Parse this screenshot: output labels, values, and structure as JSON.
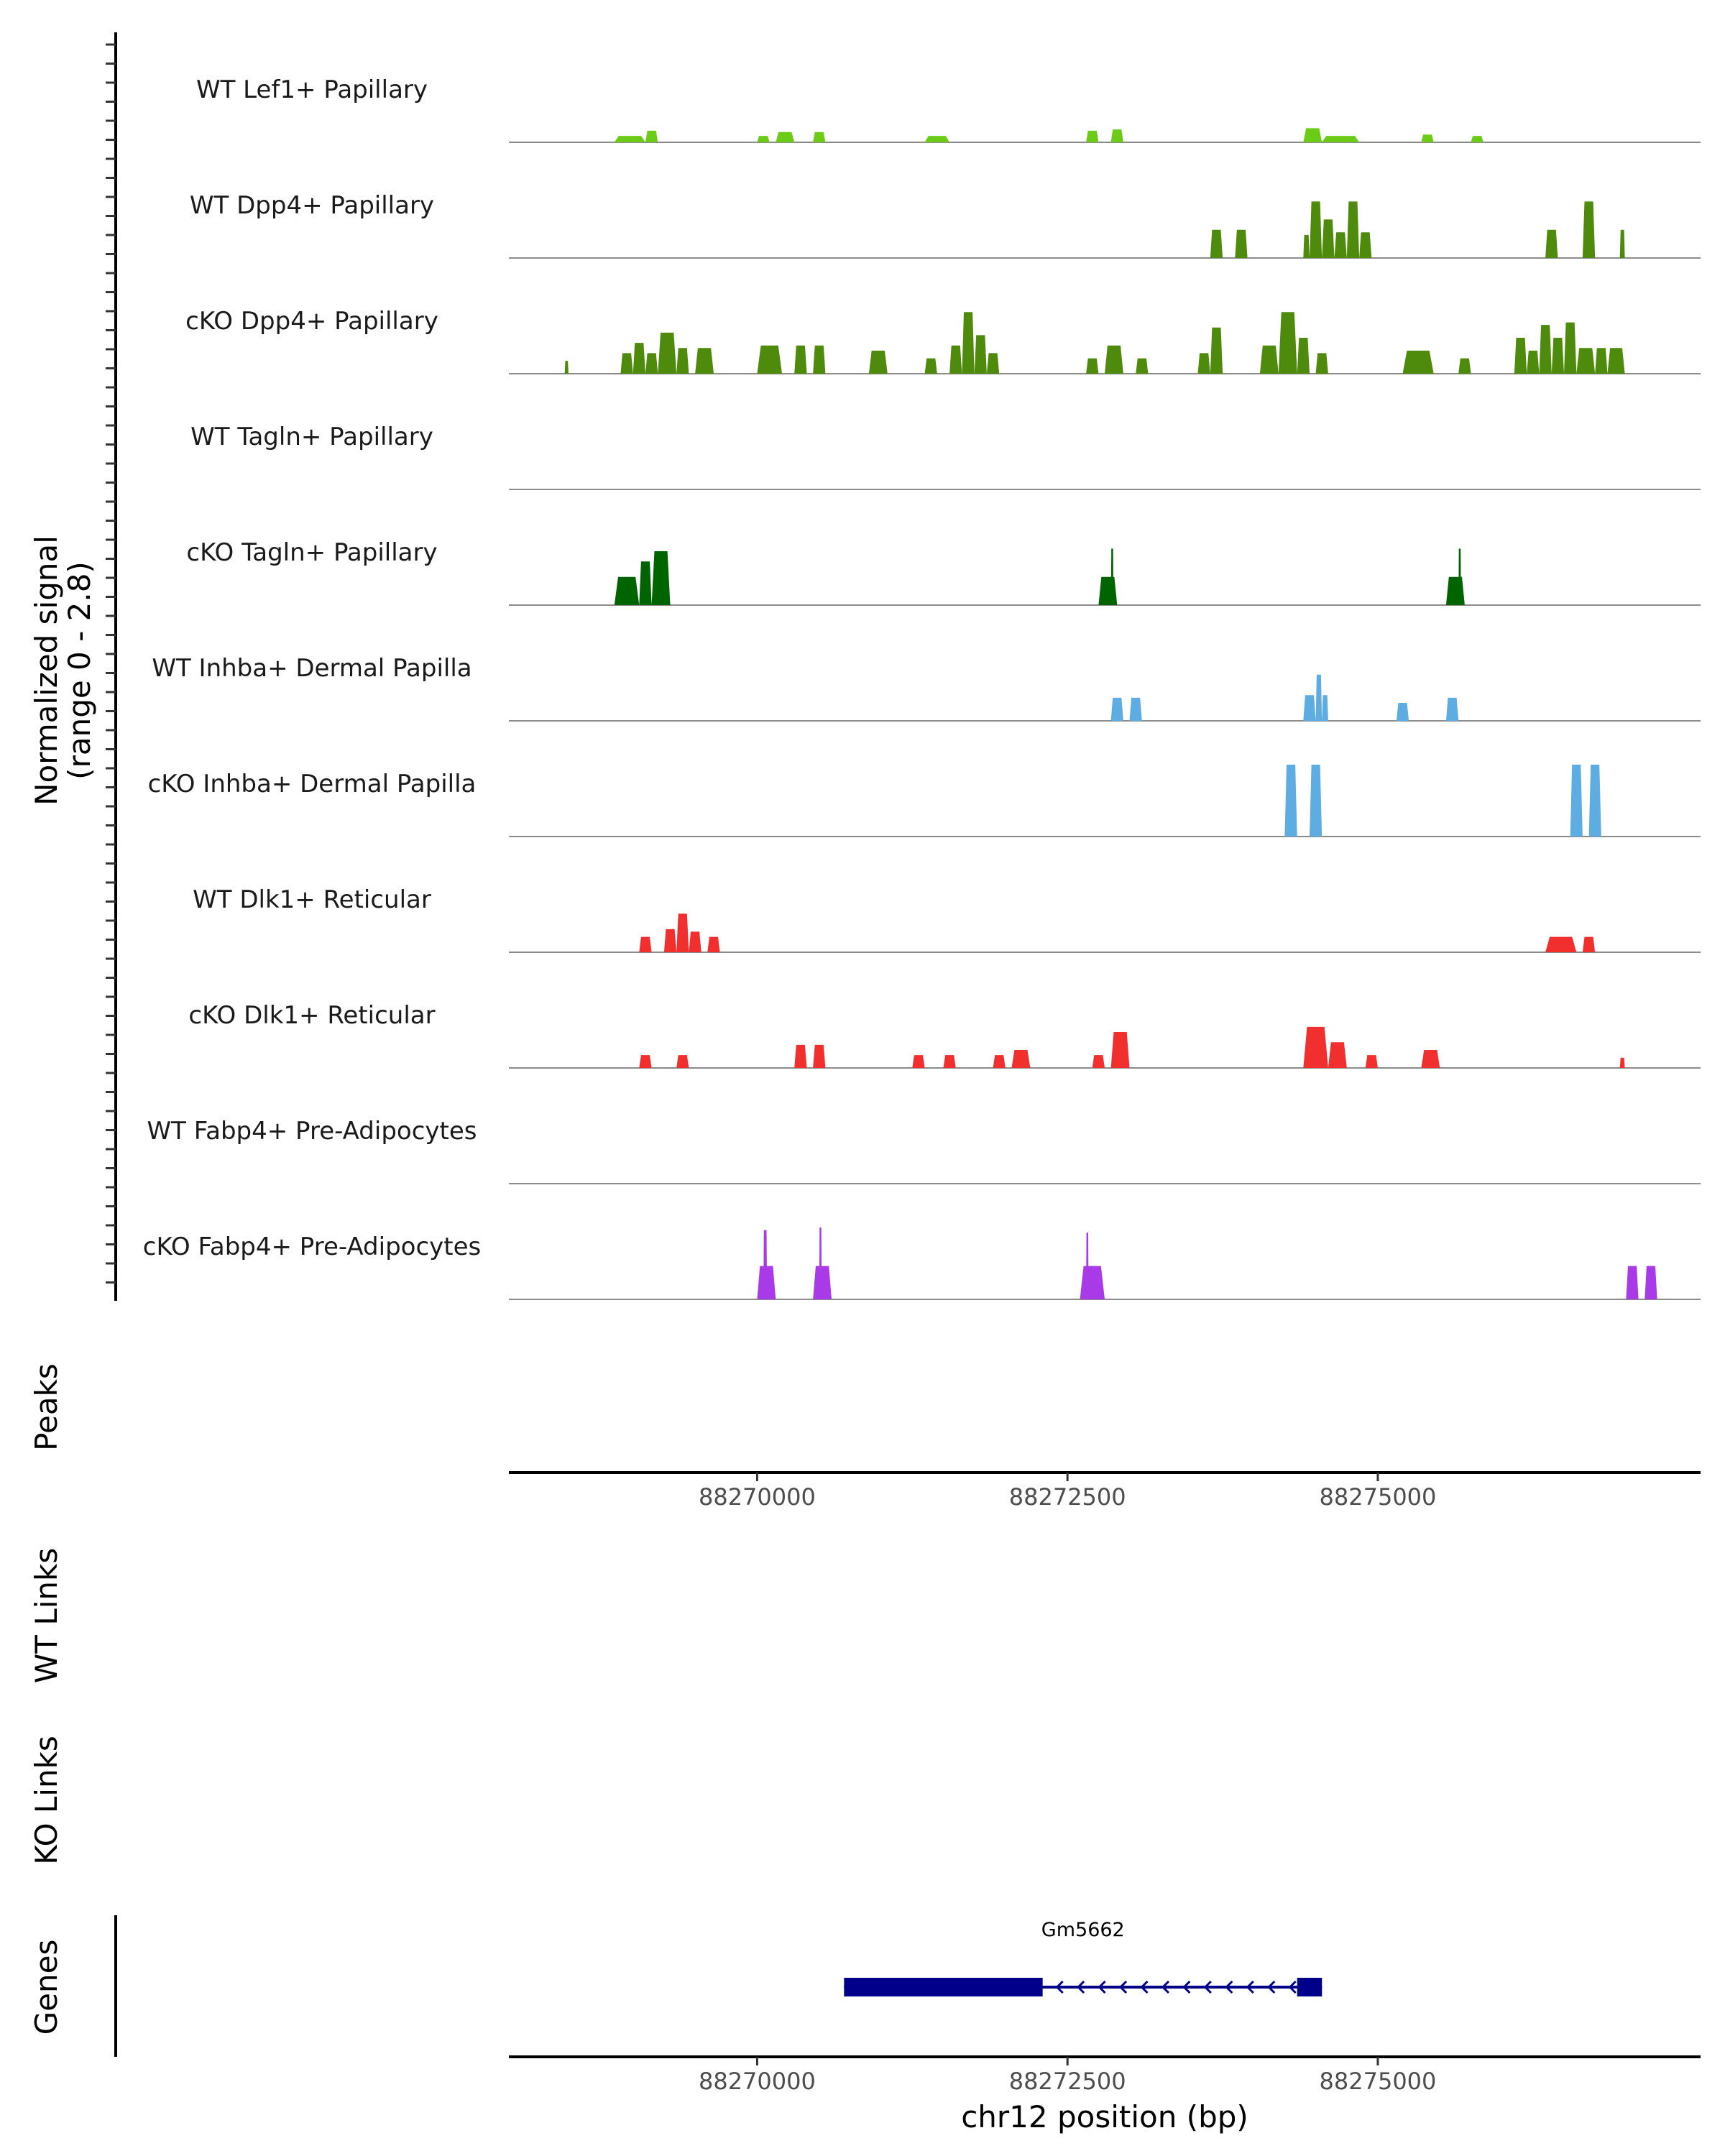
{
  "chart_data": {
    "type": "coverage",
    "chromosome": "chr12",
    "xlabel": "chr12 position (bp)",
    "xlim": [
      88268000,
      88277600
    ],
    "x_ticks": [
      88270000,
      88272500,
      88275000
    ],
    "x_tick_labels": [
      "88270000",
      "88272500",
      "88275000"
    ],
    "ylabel_line1": "Normalized signal",
    "ylabel_line2": "(range 0 - 2.8)",
    "ylim": [
      0,
      2.8
    ],
    "panels": {
      "peaks": "Peaks",
      "wt_links": "WT Links",
      "ko_links": "KO Links",
      "genes": "Genes"
    },
    "tracks": [
      {
        "name": "WT Lef1+ Papillary",
        "color": "#6ccb16",
        "segments": [
          [
            88268850,
            88269100,
            0.25
          ],
          [
            88269100,
            88269200,
            0.45
          ],
          [
            88270000,
            88270100,
            0.25
          ],
          [
            88270150,
            88270300,
            0.4
          ],
          [
            88270450,
            88270550,
            0.4
          ],
          [
            88271350,
            88271550,
            0.25
          ],
          [
            88272650,
            88272750,
            0.45
          ],
          [
            88272850,
            88272950,
            0.5
          ],
          [
            88274400,
            88274550,
            0.55
          ],
          [
            88274550,
            88274850,
            0.25
          ],
          [
            88275350,
            88275450,
            0.3
          ],
          [
            88275750,
            88275850,
            0.25
          ]
        ]
      },
      {
        "name": "WT Dpp4+ Papillary",
        "color": "#4e8a0b",
        "segments": [
          [
            88273650,
            88273750,
            1.1
          ],
          [
            88273850,
            88273950,
            1.1
          ],
          [
            88274400,
            88274450,
            0.9
          ],
          [
            88274450,
            88274550,
            2.2
          ],
          [
            88274550,
            88274650,
            1.5
          ],
          [
            88274650,
            88274750,
            1.0
          ],
          [
            88274750,
            88274850,
            2.2
          ],
          [
            88274850,
            88274950,
            1.0
          ],
          [
            88276350,
            88276450,
            1.1
          ],
          [
            88276650,
            88276750,
            2.2
          ],
          [
            88276950,
            88276990,
            1.1
          ]
        ]
      },
      {
        "name": "cKO Dpp4+ Papillary",
        "color": "#4e8a0b",
        "segments": [
          [
            88268450,
            88268480,
            0.5
          ],
          [
            88268900,
            88269000,
            0.8
          ],
          [
            88269000,
            88269100,
            1.2
          ],
          [
            88269100,
            88269200,
            0.8
          ],
          [
            88269200,
            88269350,
            1.6
          ],
          [
            88269350,
            88269450,
            1.0
          ],
          [
            88269500,
            88269650,
            1.0
          ],
          [
            88270000,
            88270200,
            1.1
          ],
          [
            88270300,
            88270400,
            1.1
          ],
          [
            88270450,
            88270550,
            1.1
          ],
          [
            88270900,
            88271050,
            0.9
          ],
          [
            88271350,
            88271450,
            0.6
          ],
          [
            88271550,
            88271650,
            1.1
          ],
          [
            88271650,
            88271750,
            2.4
          ],
          [
            88271750,
            88271850,
            1.5
          ],
          [
            88271850,
            88271950,
            0.8
          ],
          [
            88272650,
            88272750,
            0.6
          ],
          [
            88272800,
            88272950,
            1.1
          ],
          [
            88273050,
            88273150,
            0.6
          ],
          [
            88273550,
            88273650,
            0.8
          ],
          [
            88273650,
            88273750,
            1.8
          ],
          [
            88274050,
            88274200,
            1.1
          ],
          [
            88274200,
            88274350,
            2.4
          ],
          [
            88274350,
            88274450,
            1.4
          ],
          [
            88274500,
            88274600,
            0.8
          ],
          [
            88275200,
            88275450,
            0.9
          ],
          [
            88275650,
            88275750,
            0.6
          ],
          [
            88276100,
            88276200,
            1.4
          ],
          [
            88276200,
            88276300,
            0.9
          ],
          [
            88276300,
            88276400,
            1.9
          ],
          [
            88276400,
            88276500,
            1.4
          ],
          [
            88276500,
            88276600,
            2.0
          ],
          [
            88276600,
            88276750,
            1.0
          ],
          [
            88276750,
            88276850,
            1.0
          ],
          [
            88276850,
            88276990,
            1.0
          ]
        ]
      },
      {
        "name": "WT Tagln+ Papillary",
        "color": "#006400",
        "segments": []
      },
      {
        "name": "cKO Tagln+ Papillary",
        "color": "#006400",
        "segments": [
          [
            88268850,
            88269050,
            1.1
          ],
          [
            88269050,
            88269150,
            1.7
          ],
          [
            88269150,
            88269300,
            2.1
          ],
          [
            88272750,
            88272900,
            1.1
          ],
          [
            88272850,
            88272870,
            2.2
          ],
          [
            88275550,
            88275700,
            1.1
          ],
          [
            88275650,
            88275670,
            2.2
          ]
        ]
      },
      {
        "name": "WT Inhba+ Dermal Papilla",
        "color": "#5dade2",
        "segments": [
          [
            88272850,
            88272950,
            0.9
          ],
          [
            88273000,
            88273100,
            0.9
          ],
          [
            88274400,
            88274500,
            1.0
          ],
          [
            88274500,
            88274550,
            1.8
          ],
          [
            88274550,
            88274600,
            1.0
          ],
          [
            88275150,
            88275250,
            0.7
          ],
          [
            88275550,
            88275650,
            0.9
          ]
        ]
      },
      {
        "name": "cKO Inhba+ Dermal Papilla",
        "color": "#5dade2",
        "segments": [
          [
            88274250,
            88274350,
            2.8
          ],
          [
            88274450,
            88274550,
            2.8
          ],
          [
            88276550,
            88276650,
            2.8
          ],
          [
            88276700,
            88276800,
            2.8
          ]
        ]
      },
      {
        "name": "WT Dlk1+ Reticular",
        "color": "#f22f2f",
        "segments": [
          [
            88269050,
            88269150,
            0.6
          ],
          [
            88269250,
            88269350,
            0.9
          ],
          [
            88269350,
            88269450,
            1.5
          ],
          [
            88269450,
            88269550,
            0.8
          ],
          [
            88269600,
            88269700,
            0.6
          ],
          [
            88276350,
            88276600,
            0.6
          ],
          [
            88276650,
            88276750,
            0.6
          ]
        ]
      },
      {
        "name": "cKO Dlk1+ Reticular",
        "color": "#f22f2f",
        "segments": [
          [
            88269050,
            88269150,
            0.5
          ],
          [
            88269350,
            88269450,
            0.5
          ],
          [
            88270300,
            88270400,
            0.9
          ],
          [
            88270450,
            88270550,
            0.9
          ],
          [
            88271250,
            88271350,
            0.5
          ],
          [
            88271500,
            88271600,
            0.5
          ],
          [
            88271900,
            88272000,
            0.5
          ],
          [
            88272050,
            88272200,
            0.7
          ],
          [
            88272700,
            88272800,
            0.5
          ],
          [
            88272850,
            88273000,
            1.4
          ],
          [
            88274400,
            88274600,
            1.6
          ],
          [
            88274600,
            88274750,
            1.0
          ],
          [
            88274900,
            88275000,
            0.5
          ],
          [
            88275350,
            88275500,
            0.7
          ],
          [
            88276950,
            88276990,
            0.4
          ]
        ]
      },
      {
        "name": "WT Fabp4+ Pre-Adipocytes",
        "color": "#a93ae8",
        "segments": []
      },
      {
        "name": "cKO Fabp4+ Pre-Adipocytes",
        "color": "#a93ae8",
        "segments": [
          [
            88270000,
            88270150,
            1.3
          ],
          [
            88270050,
            88270080,
            2.7
          ],
          [
            88270450,
            88270600,
            1.3
          ],
          [
            88270500,
            88270520,
            2.8
          ],
          [
            88272600,
            88272800,
            1.3
          ],
          [
            88272650,
            88272670,
            2.6
          ],
          [
            88277000,
            88277100,
            1.3
          ],
          [
            88277150,
            88277250,
            1.3
          ]
        ]
      }
    ],
    "gene": {
      "name": "Gm5662",
      "start": 88270700,
      "end": 88274550,
      "exons": [
        [
          88270700,
          88272300
        ],
        [
          88274350,
          88274550
        ]
      ],
      "strand": "-",
      "color": "#00008b"
    }
  }
}
